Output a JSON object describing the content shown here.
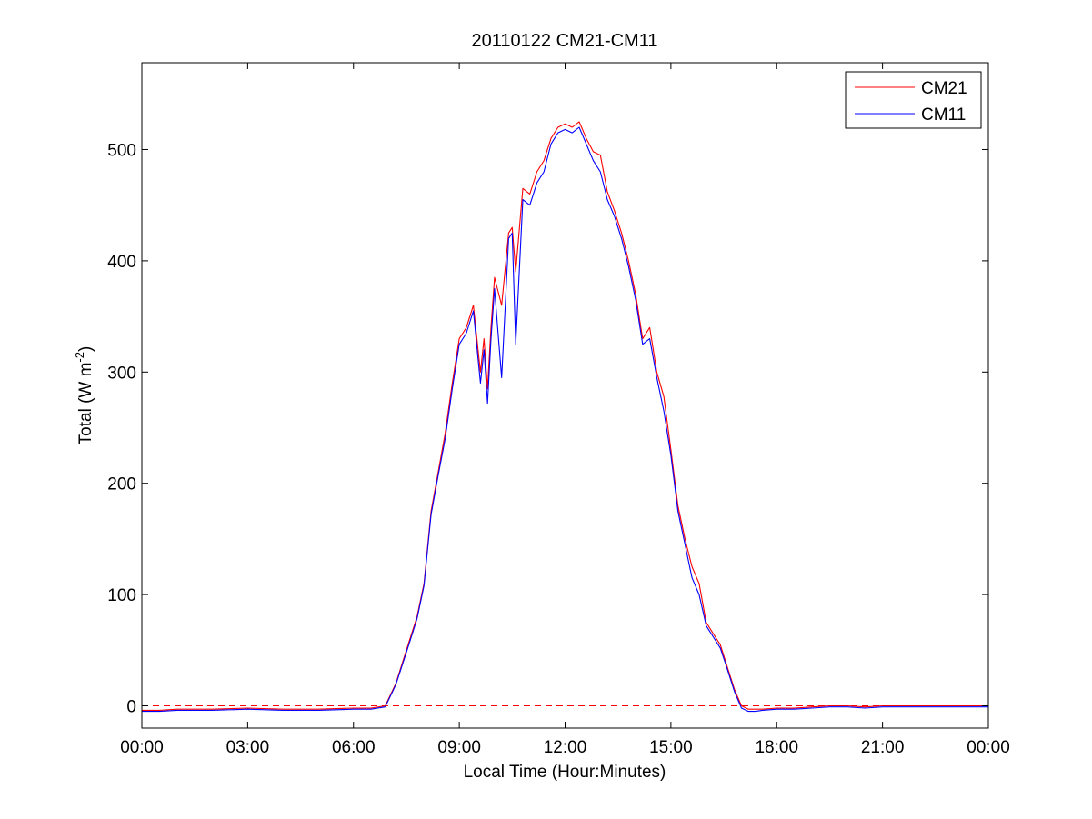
{
  "chart_data": {
    "type": "line",
    "title": "20110122 CM21-CM11",
    "xlabel": "Local Time (Hour:Minutes)",
    "ylabel": {
      "prefix": "Total (W m",
      "superscript": "-2",
      "suffix": ")"
    },
    "xlim": [
      0,
      24
    ],
    "ylim": [
      -20,
      578
    ],
    "x_ticks": [
      0,
      3,
      6,
      9,
      12,
      15,
      18,
      21,
      24
    ],
    "x_tick_labels": [
      "00:00",
      "03:00",
      "06:00",
      "09:00",
      "12:00",
      "15:00",
      "18:00",
      "21:00",
      "00:00"
    ],
    "y_ticks": [
      0,
      100,
      200,
      300,
      400,
      500
    ],
    "y_tick_labels": [
      "0",
      "100",
      "200",
      "300",
      "400",
      "500"
    ],
    "grid": false,
    "legend_position": "top-right",
    "reference_line": {
      "y": 0,
      "color": "#ff0000",
      "style": "dashed"
    },
    "series": [
      {
        "name": "CM21",
        "color": "#ff0000",
        "x": [
          0,
          0.5,
          1,
          2,
          3,
          4,
          5,
          6,
          6.5,
          6.9,
          7.2,
          7.5,
          7.8,
          8.0,
          8.2,
          8.4,
          8.6,
          8.8,
          9.0,
          9.2,
          9.4,
          9.6,
          9.7,
          9.8,
          9.9,
          10.0,
          10.2,
          10.4,
          10.5,
          10.6,
          10.8,
          11.0,
          11.2,
          11.4,
          11.6,
          11.8,
          12.0,
          12.2,
          12.4,
          12.6,
          12.8,
          13.0,
          13.2,
          13.4,
          13.6,
          13.8,
          14.0,
          14.2,
          14.4,
          14.6,
          14.8,
          15.0,
          15.2,
          15.4,
          15.6,
          15.8,
          16.0,
          16.2,
          16.4,
          16.6,
          16.8,
          17.0,
          17.2,
          17.4,
          17.6,
          18.0,
          18.5,
          19.0,
          19.5,
          20.0,
          20.5,
          21.0,
          22.0,
          23.0,
          24.0
        ],
        "y": [
          -4,
          -4,
          -3,
          -3,
          -2,
          -3,
          -3,
          -2,
          -2,
          0,
          20,
          50,
          80,
          110,
          175,
          210,
          245,
          290,
          330,
          340,
          360,
          300,
          330,
          285,
          340,
          385,
          360,
          425,
          430,
          390,
          465,
          460,
          480,
          490,
          510,
          520,
          523,
          520,
          525,
          510,
          498,
          495,
          462,
          445,
          425,
          400,
          370,
          330,
          340,
          300,
          278,
          230,
          180,
          150,
          125,
          110,
          75,
          65,
          55,
          35,
          15,
          0,
          -3,
          -3,
          -3,
          -2,
          -2,
          -1,
          0,
          0,
          -1,
          0,
          0,
          0,
          0
        ]
      },
      {
        "name": "CM11",
        "color": "#0000ff",
        "x": [
          0,
          0.5,
          1,
          2,
          3,
          4,
          5,
          6,
          6.5,
          6.9,
          7.2,
          7.5,
          7.8,
          8.0,
          8.2,
          8.4,
          8.6,
          8.8,
          9.0,
          9.2,
          9.4,
          9.6,
          9.7,
          9.8,
          9.9,
          10.0,
          10.2,
          10.4,
          10.5,
          10.6,
          10.8,
          11.0,
          11.2,
          11.4,
          11.6,
          11.8,
          12.0,
          12.2,
          12.4,
          12.6,
          12.8,
          13.0,
          13.2,
          13.4,
          13.6,
          13.8,
          14.0,
          14.2,
          14.4,
          14.6,
          14.8,
          15.0,
          15.2,
          15.4,
          15.6,
          15.8,
          16.0,
          16.2,
          16.4,
          16.6,
          16.8,
          17.0,
          17.2,
          17.4,
          17.6,
          18.0,
          18.5,
          19.0,
          19.5,
          20.0,
          20.5,
          21.0,
          22.0,
          23.0,
          24.0
        ],
        "y": [
          -5,
          -5,
          -4,
          -4,
          -3,
          -4,
          -4,
          -3,
          -3,
          -1,
          19,
          48,
          78,
          108,
          172,
          207,
          240,
          285,
          325,
          335,
          355,
          290,
          320,
          272,
          330,
          375,
          295,
          420,
          425,
          325,
          455,
          450,
          470,
          480,
          505,
          515,
          518,
          515,
          520,
          505,
          490,
          480,
          455,
          440,
          420,
          395,
          365,
          325,
          330,
          295,
          265,
          225,
          175,
          145,
          115,
          100,
          72,
          62,
          52,
          33,
          13,
          -2,
          -5,
          -5,
          -4,
          -3,
          -3,
          -2,
          -1,
          -1,
          -2,
          -1,
          -1,
          -1,
          -1
        ]
      }
    ]
  }
}
